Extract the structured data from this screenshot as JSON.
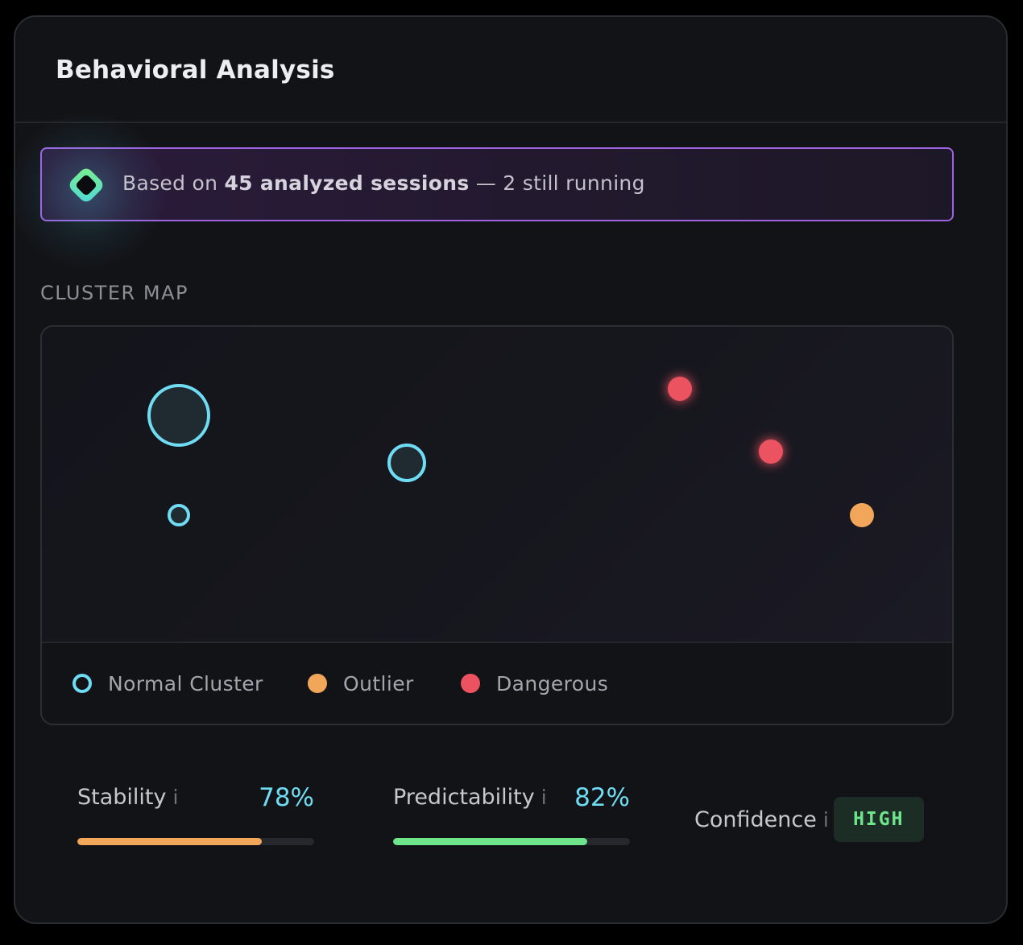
{
  "header": {
    "title": "Behavioral Analysis"
  },
  "banner": {
    "icon": "sessions-diamond-icon",
    "text_prefix": "Based on",
    "text_bold": "45 analyzed sessions",
    "text_suffix": "— 2 still running"
  },
  "cluster_map": {
    "label": "CLUSTER MAP",
    "legend": [
      {
        "label": "Normal Cluster",
        "type": "normal",
        "color": "#6fdcf4"
      },
      {
        "label": "Outlier",
        "type": "outlier",
        "color": "#f2a65a"
      },
      {
        "label": "Dangerous",
        "type": "dangerous",
        "color": "#ec5260"
      }
    ],
    "points": [
      {
        "type": "normal",
        "magnitude": "large"
      },
      {
        "type": "normal",
        "magnitude": "small"
      },
      {
        "type": "normal",
        "magnitude": "medium"
      },
      {
        "type": "dangerous",
        "magnitude": "point"
      },
      {
        "type": "dangerous",
        "magnitude": "point"
      },
      {
        "type": "outlier",
        "magnitude": "point"
      }
    ]
  },
  "metrics": {
    "stability": {
      "label": "Stability",
      "info": "i",
      "value": "78%",
      "fraction": 0.78,
      "color": "#f2a65a"
    },
    "predictability": {
      "label": "Predictability",
      "info": "i",
      "value": "82%",
      "fraction": 0.82,
      "color": "#6ee58a"
    },
    "confidence": {
      "label": "Confidence",
      "info": "i",
      "value": "HIGH"
    }
  }
}
